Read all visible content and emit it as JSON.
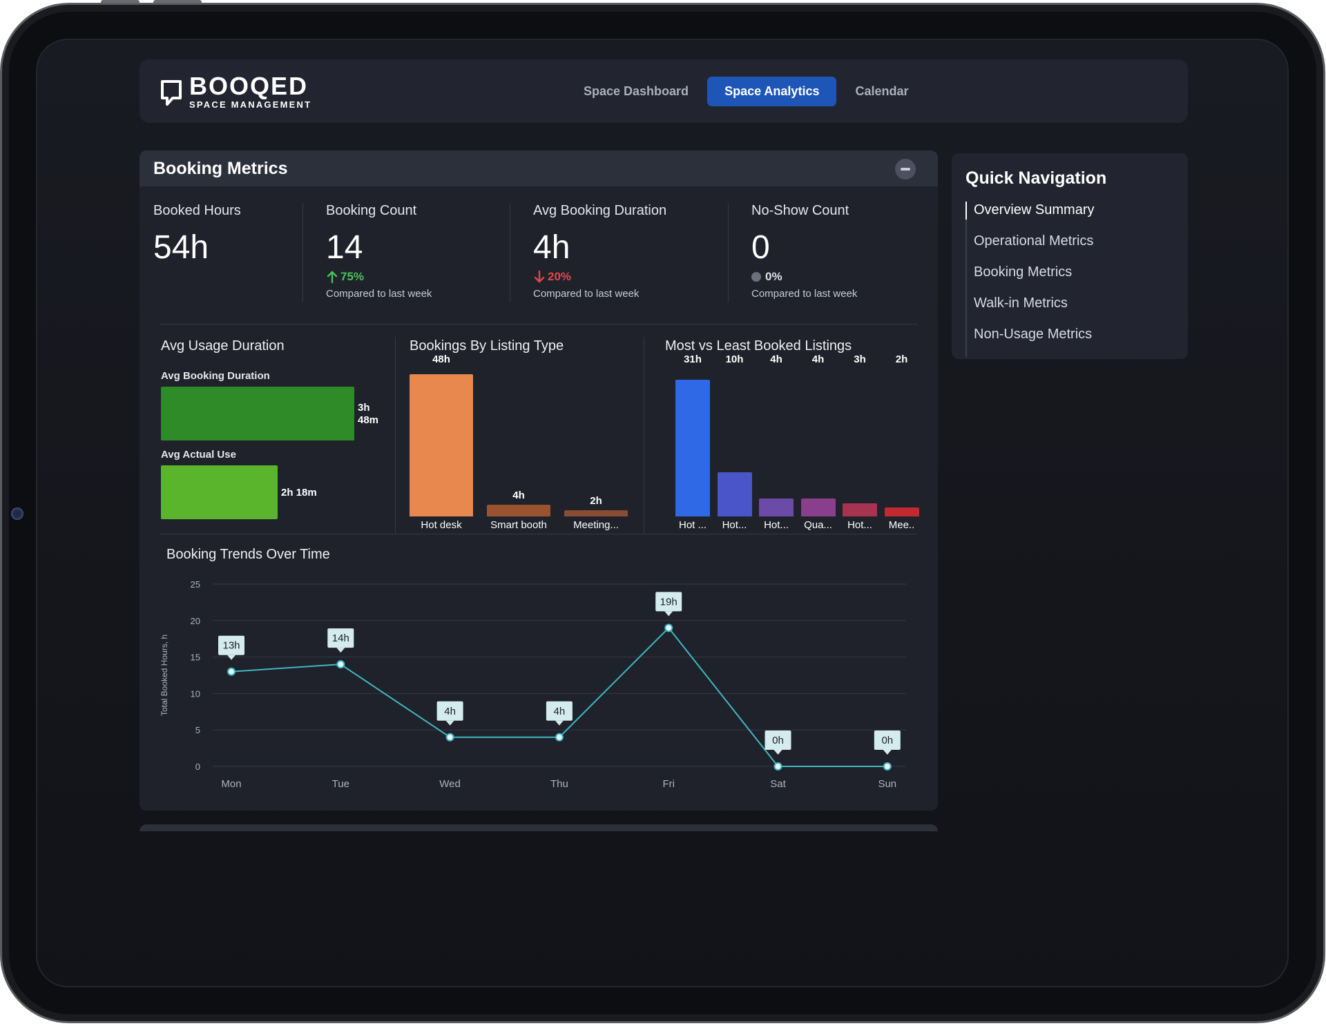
{
  "app": {
    "logo_name": "BOOQED",
    "logo_sub": "SPACE MANAGEMENT"
  },
  "nav": {
    "tabs": [
      {
        "label": "Space Dashboard",
        "active": false
      },
      {
        "label": "Space Analytics",
        "active": true
      },
      {
        "label": "Calendar",
        "active": false
      }
    ]
  },
  "panel": {
    "title": "Booking Metrics"
  },
  "kpis": [
    {
      "label": "Booked Hours",
      "value": "54h"
    },
    {
      "label": "Booking Count",
      "value": "14",
      "change": "75%",
      "direction": "up",
      "note": "Compared to last week"
    },
    {
      "label": "Avg Booking Duration",
      "value": "4h",
      "change": "20%",
      "direction": "down",
      "note": "Compared to last week"
    },
    {
      "label": "No-Show Count",
      "value": "0",
      "change": "0%",
      "direction": "flat",
      "note": "Compared to last week"
    }
  ],
  "colors": {
    "up": "#47c35a",
    "down": "#e0484e",
    "accent": "#1e56b8",
    "line": "#3fb8c4"
  },
  "chart_data": [
    {
      "type": "bar",
      "orientation": "horizontal",
      "title": "Avg Usage Duration",
      "categories": [
        "Avg Booking Duration",
        "Avg Actual Use"
      ],
      "values": [
        228,
        138
      ],
      "value_labels": [
        "3h 48m",
        "2h 18m"
      ],
      "unit": "minutes",
      "colors": [
        "#2f8a28",
        "#5ab52c"
      ]
    },
    {
      "type": "bar",
      "title": "Bookings By Listing Type",
      "categories": [
        "Hot desk",
        "Smart booth",
        "Meeting..."
      ],
      "values": [
        48,
        4,
        2
      ],
      "value_labels": [
        "48h",
        "4h",
        "2h"
      ],
      "unit": "hours",
      "colors": [
        "#e8874e",
        "#9a5330",
        "#8a4c32"
      ]
    },
    {
      "type": "bar",
      "title": "Most vs Least Booked Listings",
      "categories": [
        "Hot ...",
        "Hot...",
        "Hot...",
        "Qua...",
        "Hot...",
        "Mee.."
      ],
      "values": [
        31,
        10,
        4,
        4,
        3,
        2
      ],
      "value_labels": [
        "31h",
        "10h",
        "4h",
        "4h",
        "3h",
        "2h"
      ],
      "unit": "hours",
      "colors": [
        "#2f69e6",
        "#4a55c9",
        "#6b4aa8",
        "#8a3f8c",
        "#a6334f",
        "#c02a30"
      ]
    },
    {
      "type": "line",
      "title": "Booking Trends Over Time",
      "ylabel": "Total Booked Hours, h",
      "xlabel": "",
      "ylim": [
        0,
        25
      ],
      "yticks": [
        "0",
        "5",
        "10",
        "15",
        "20",
        "25"
      ],
      "categories": [
        "Mon",
        "Tue",
        "Wed",
        "Thu",
        "Fri",
        "Sat",
        "Sun"
      ],
      "values": [
        13,
        14,
        4,
        4,
        19,
        0,
        0
      ],
      "point_labels": [
        "13h",
        "14h",
        "4h",
        "4h",
        "19h",
        "0h",
        "0h"
      ],
      "grid": true
    }
  ],
  "quick_nav": {
    "title": "Quick Navigation",
    "items": [
      {
        "label": "Overview Summary",
        "active": true
      },
      {
        "label": "Operational Metrics",
        "active": false
      },
      {
        "label": "Booking Metrics",
        "active": false
      },
      {
        "label": "Walk-in Metrics",
        "active": false
      },
      {
        "label": "Non-Usage Metrics",
        "active": false
      }
    ]
  }
}
